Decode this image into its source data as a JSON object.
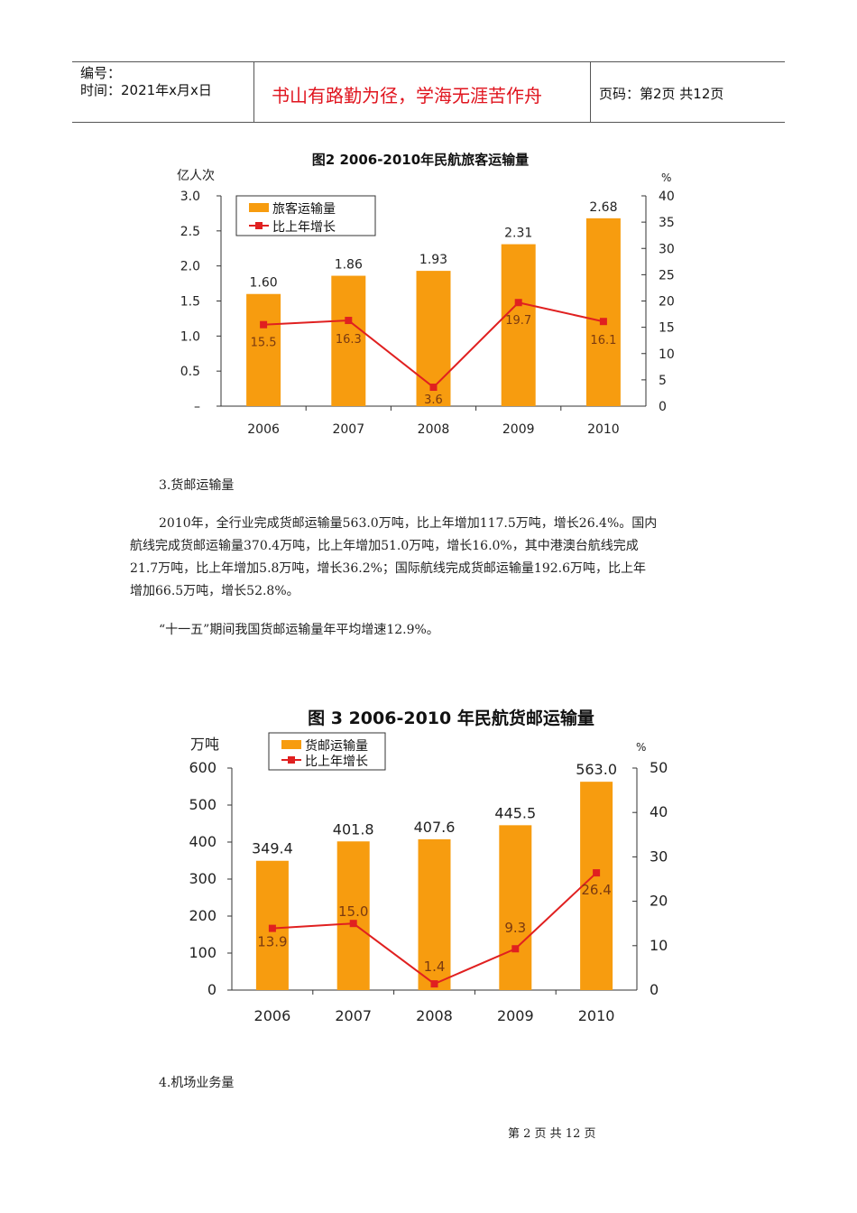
{
  "header": {
    "number_label": "编号：",
    "date_label": "时间：2021年x月x日",
    "motto": "书山有路勤为径，学海无涯苦作舟",
    "page_label": "页码：第2页  共12页",
    "motto_color": "#e0141e"
  },
  "section3": {
    "heading": "3.货邮运输量",
    "para1_lines": [
      "2010年，全行业完成货邮运输量563.0万吨，比上年增加117.5万吨，增长26.4%。国内",
      "航线完成货邮运输量370.4万吨，比上年增加51.0万吨，增长16.0%，其中港澳台航线完成",
      "21.7万吨，比上年增加5.8万吨，增长36.2%；国际航线完成货邮运输量192.6万吨，比上年",
      "增加66.5万吨，增长52.8%。"
    ],
    "para2": "“十一五”期间我国货邮运输量年平均增速12.9%。"
  },
  "section4": {
    "heading": "4.机场业务量"
  },
  "footer": {
    "page": "第 2 页 共 12 页"
  },
  "chart_data": [
    {
      "type": "bar+line",
      "title": "图2  2006-2010年民航旅客运输量",
      "ylabel_left": "亿人次",
      "ylabel_right": "%",
      "categories": [
        "2006",
        "2007",
        "2008",
        "2009",
        "2010"
      ],
      "left_ticks": [
        "–",
        "0.5",
        "1.0",
        "1.5",
        "2.0",
        "2.5",
        "3.0"
      ],
      "right_ticks": [
        "0",
        "5",
        "10",
        "15",
        "20",
        "25",
        "30",
        "35",
        "40"
      ],
      "ylim_left": [
        0,
        3.0
      ],
      "ylim_right": [
        0,
        40
      ],
      "legend_placement": "top-left",
      "series": [
        {
          "name": "旅客运输量",
          "kind": "bar",
          "axis": "left",
          "color": "#f79c0f",
          "values": [
            1.6,
            1.86,
            1.93,
            2.31,
            2.68
          ],
          "labels": [
            "1.60",
            "1.86",
            "1.93",
            "2.31",
            "2.68"
          ]
        },
        {
          "name": "比上年增长",
          "kind": "line",
          "axis": "right",
          "color": "#e02020",
          "values": [
            15.5,
            16.3,
            3.6,
            19.7,
            16.1
          ],
          "labels": [
            "15.5",
            "16.3",
            "3.6",
            "19.7",
            "16.1"
          ]
        }
      ],
      "grid": false
    },
    {
      "type": "bar+line",
      "title": "图 3   2006-2010 年民航货邮运输量",
      "ylabel_left": "万吨",
      "ylabel_right": "%",
      "categories": [
        "2006",
        "2007",
        "2008",
        "2009",
        "2010"
      ],
      "left_ticks": [
        "0",
        "100",
        "200",
        "300",
        "400",
        "500",
        "600"
      ],
      "right_ticks": [
        "0",
        "10",
        "20",
        "30",
        "40",
        "50"
      ],
      "ylim_left": [
        0,
        600
      ],
      "ylim_right": [
        0,
        50
      ],
      "legend_placement": "top-left",
      "series": [
        {
          "name": "货邮运输量",
          "kind": "bar",
          "axis": "left",
          "color": "#f79c0f",
          "values": [
            349.4,
            401.8,
            407.6,
            445.5,
            563.0
          ],
          "labels": [
            "349.4",
            "401.8",
            "407.6",
            "445.5",
            "563.0"
          ]
        },
        {
          "name": "比上年增长",
          "kind": "line",
          "axis": "right",
          "color": "#e02020",
          "values": [
            13.9,
            15.0,
            1.4,
            9.3,
            26.4
          ],
          "labels": [
            "13.9",
            "15.0",
            "1.4",
            "9.3",
            "26.4"
          ]
        }
      ],
      "grid": false
    }
  ]
}
